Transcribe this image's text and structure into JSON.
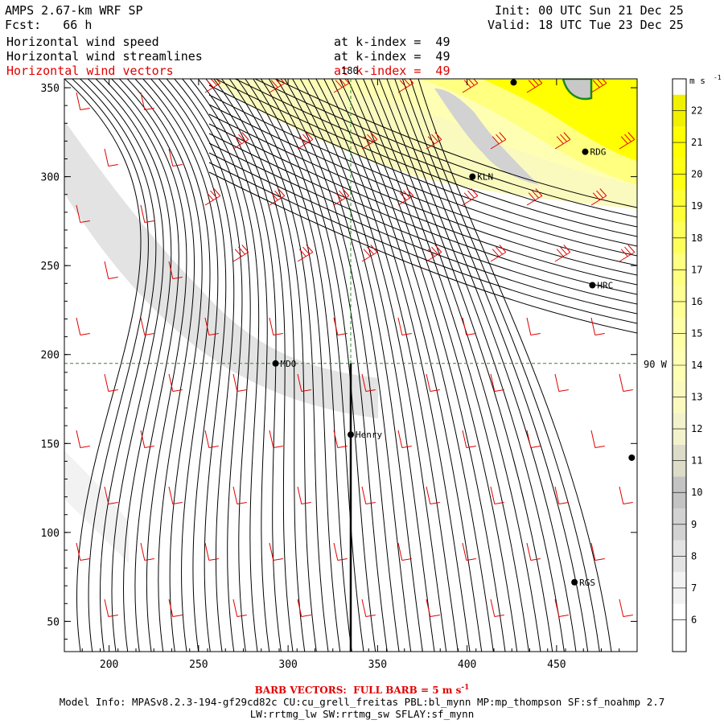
{
  "header": {
    "model": "AMPS 2.67-km WRF SP",
    "forecast": "Fcst:   66 h",
    "init": "Init: 00 UTC Sun 21 Dec 25",
    "valid": "Valid: 18 UTC Tue 23 Dec 25",
    "fields": [
      {
        "name": "Horizontal wind speed",
        "level": "at k-index =  49",
        "color": "#000000"
      },
      {
        "name": "Horizontal wind streamlines",
        "level": "at k-index =  49",
        "color": "#000000"
      },
      {
        "name": "Horizontal wind vectors",
        "level": "at k-index =  49",
        "color": "#e00000"
      }
    ]
  },
  "footer": {
    "barb_note": "BARB VECTORS:  FULL BARB = 5 m s",
    "barb_exp": "-1",
    "model_info_1": "Model Info: MPASv8.2.3-194-gf29cd82c CU:cu_grell_freitas PBL:bl_mynn MP:mp_thompson SF:sf_noahmp 2.7",
    "model_info_2": "LW:rrtmg_lw SW:rrtmg_sw SFLAY:sf_mynn"
  },
  "chart_data": {
    "type": "contour map",
    "xlim": [
      175,
      495
    ],
    "ylim": [
      33,
      355
    ],
    "x_ticks": [
      200,
      250,
      300,
      350,
      400,
      450
    ],
    "y_ticks": [
      50,
      100,
      150,
      200,
      250,
      300,
      350
    ],
    "meridian_label": "180",
    "meridian_x": 335,
    "parallel_label": "90 W",
    "parallel_y": 195,
    "colorbar": {
      "unit": "m s",
      "unit_exp": "-1",
      "levels": [
        6,
        7,
        8,
        9,
        10,
        11,
        12,
        13,
        14,
        15,
        16,
        17,
        18,
        19,
        20,
        21,
        22
      ],
      "colors": [
        "#ffffff",
        "#f2f2f2",
        "#e3e3e3",
        "#d2d2d2",
        "#c3c3c3",
        "#dcdcc8",
        "#f2f2cc",
        "#fafabf",
        "#ffffb3",
        "#ffffa6",
        "#ffff94",
        "#ffff80",
        "#ffff5c",
        "#ffff38",
        "#ffff14",
        "#ffff00",
        "#f0f000"
      ]
    },
    "stations": [
      {
        "label": "RDG",
        "x": 466,
        "y": 314
      },
      {
        "label": "KLN",
        "x": 403,
        "y": 300
      },
      {
        "label": "HRC",
        "x": 470,
        "y": 239
      },
      {
        "label": "MDO",
        "x": 293,
        "y": 195
      },
      {
        "label": "Henry",
        "x": 335,
        "y": 155
      },
      {
        "label": "RGS",
        "x": 460,
        "y": 72
      },
      {
        "label": "",
        "x": 492,
        "y": 142
      },
      {
        "label": "",
        "x": 426,
        "y": 353
      }
    ],
    "speed_regions_note": "light yellow (12-16) over top-center band, bright yellow (18-22) in upper right, grey (7-10) band along left diagonal, white (<6) over lower area"
  }
}
